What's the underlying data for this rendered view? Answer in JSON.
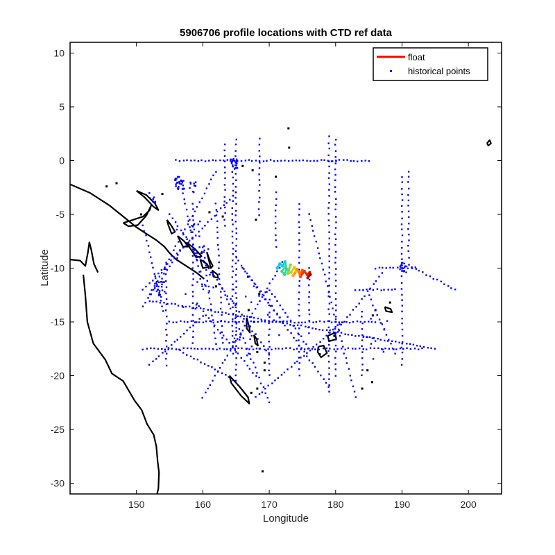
{
  "chart_data": {
    "type": "scatter",
    "title": "5906706 profile locations with CTD ref data",
    "xlabel": "Longitude",
    "ylabel": "Latitude",
    "xlim": [
      140,
      205
    ],
    "ylim": [
      -31,
      11
    ],
    "xticks": [
      150,
      160,
      170,
      180,
      190,
      200
    ],
    "yticks": [
      -30,
      -25,
      -20,
      -15,
      -10,
      -5,
      0,
      5,
      10
    ],
    "grid": false,
    "legend": {
      "placement": "top-right",
      "entries": [
        {
          "label": "float",
          "marker": "line",
          "color": "#ff0000"
        },
        {
          "label": "historical points",
          "marker": "dot",
          "color": "#0000ff"
        }
      ]
    },
    "colors": {
      "float": "#ff0000",
      "historical": "#0000ff",
      "coastline": "#000000"
    },
    "series": [
      {
        "name": "float",
        "kind": "line",
        "color_scale": "jet",
        "x": [
          171.2,
          171.6,
          172.0,
          172.4,
          172.6,
          172.3,
          171.9,
          172.4,
          172.9,
          173.2,
          172.8,
          173.3,
          173.8,
          174.1,
          173.6,
          174.2,
          174.6,
          175.0,
          174.7,
          175.3,
          175.7,
          176.1,
          175.8,
          176.2
        ],
        "y": [
          -10.0,
          -9.6,
          -9.8,
          -9.4,
          -10.1,
          -10.6,
          -10.3,
          -9.9,
          -10.2,
          -9.7,
          -10.5,
          -10.4,
          -9.9,
          -10.3,
          -10.7,
          -10.1,
          -10.5,
          -10.2,
          -10.8,
          -10.3,
          -10.6,
          -10.4,
          -10.9,
          -10.6
        ]
      },
      {
        "name": "historical points",
        "kind": "tracks",
        "tracks": [
          {
            "from": [
              156,
              0
            ],
            "to": [
              180,
              0
            ]
          },
          {
            "from": [
              179.5,
              0
            ],
            "to": [
              185,
              0
            ]
          },
          {
            "from": [
              165,
              2
            ],
            "to": [
              165,
              -20
            ]
          },
          {
            "from": [
              164.5,
              0
            ],
            "to": [
              164.5,
              -18
            ]
          },
          {
            "from": [
              163.3,
              1.5
            ],
            "to": [
              163.3,
              -6
            ]
          },
          {
            "from": [
              168.5,
              2
            ],
            "to": [
              168.5,
              -5
            ]
          },
          {
            "from": [
              179,
              2.2
            ],
            "to": [
              179,
              -21.5
            ]
          },
          {
            "from": [
              180,
              2
            ],
            "to": [
              180,
              -20
            ]
          },
          {
            "from": [
              190,
              -1.5
            ],
            "to": [
              190,
              -19
            ]
          },
          {
            "from": [
              174.5,
              -4
            ],
            "to": [
              174.5,
              -20
            ]
          },
          {
            "from": [
              154.5,
              -9.5
            ],
            "to": [
              154.5,
              -19
            ]
          },
          {
            "from": [
              158.5,
              -4
            ],
            "to": [
              158.5,
              -17
            ]
          },
          {
            "from": [
              152,
              -13
            ],
            "to": [
              195,
              -17.5
            ]
          },
          {
            "from": [
              151,
              -17.5
            ],
            "to": [
              193,
              -17.5
            ]
          },
          {
            "from": [
              155,
              -15
            ],
            "to": [
              186,
              -15
            ]
          },
          {
            "from": [
              151,
              -12
            ],
            "to": [
              165,
              -3
            ]
          },
          {
            "from": [
              152,
              -12.5
            ],
            "to": [
              162,
              -1
            ]
          },
          {
            "from": [
              154,
              -14
            ],
            "to": [
              151,
              -6
            ]
          },
          {
            "from": [
              165,
              -9
            ],
            "to": [
              179,
              -21
            ]
          },
          {
            "from": [
              163,
              -12
            ],
            "to": [
              170,
              -22.5
            ]
          },
          {
            "from": [
              172,
              -9.5
            ],
            "to": [
              160,
              -22
            ]
          },
          {
            "from": [
              181,
              -15
            ],
            "to": [
              168,
              -22
            ]
          },
          {
            "from": [
              186,
              -10
            ],
            "to": [
              192,
              -10
            ]
          },
          {
            "from": [
              191,
              -9.7
            ],
            "to": [
              198,
              -12
            ]
          },
          {
            "from": [
              180,
              -16
            ],
            "to": [
              187,
              -10.5
            ]
          },
          {
            "from": [
              176,
              -5
            ],
            "to": [
              183,
              -22
            ]
          },
          {
            "from": [
              155,
              -5
            ],
            "to": [
              170,
              -18
            ]
          },
          {
            "from": [
              160,
              -14
            ],
            "to": [
              168,
              -20
            ]
          },
          {
            "from": [
              152,
              -19
            ],
            "to": [
              160,
              -14.5
            ]
          },
          {
            "from": [
              156,
              -17.5
            ],
            "to": [
              165,
              -20.5
            ]
          },
          {
            "from": [
              170,
              -12
            ],
            "to": [
              176,
              -17.5
            ]
          },
          {
            "from": [
              166,
              -10
            ],
            "to": [
              172,
              -15
            ]
          },
          {
            "from": [
              157,
              -3
            ],
            "to": [
              160,
              -12
            ]
          },
          {
            "from": [
              160,
              -8
            ],
            "to": [
              162,
              -17
            ]
          },
          {
            "from": [
              162,
              -4
            ],
            "to": [
              163,
              -17
            ]
          },
          {
            "from": [
              183,
              -12
            ],
            "to": [
              189,
              -12
            ]
          },
          {
            "from": [
              176,
              -10
            ],
            "to": [
              176,
              -16
            ]
          },
          {
            "from": [
              171,
              -3
            ],
            "to": [
              171,
              -8
            ]
          },
          {
            "from": [
              170,
              -13
            ],
            "to": [
              170,
              -20
            ]
          },
          {
            "from": [
              184,
              -14
            ],
            "to": [
              184,
              -20
            ]
          },
          {
            "from": [
              151,
              -13.5
            ],
            "to": [
              157,
              -8
            ]
          },
          {
            "from": [
              185,
              -12.5
            ],
            "to": [
              189,
              -18
            ]
          },
          {
            "from": [
              191,
              -1
            ],
            "to": [
              191,
              -9
            ]
          }
        ],
        "clusters": [
          {
            "center": [
              156.5,
              -2.2
            ],
            "count": 30,
            "spread": 0.7
          },
          {
            "center": [
              158.5,
              -2.5
            ],
            "count": 10,
            "spread": 0.5
          },
          {
            "center": [
              153.5,
              -12.0
            ],
            "count": 20,
            "spread": 0.8
          },
          {
            "center": [
              164.7,
              -0.3
            ],
            "count": 25,
            "spread": 0.5
          },
          {
            "center": [
              190.2,
              -9.9
            ],
            "count": 16,
            "spread": 0.5
          },
          {
            "center": [
              152.5,
              -3.5
            ],
            "count": 8,
            "spread": 0.6
          },
          {
            "center": [
              160.0,
              -11.0
            ],
            "count": 20,
            "spread": 3.0
          },
          {
            "center": [
              168.0,
              -15.0
            ],
            "count": 25,
            "spread": 3.5
          },
          {
            "center": [
              158.0,
              -7.0
            ],
            "count": 16,
            "spread": 2.5
          },
          {
            "center": [
              186.0,
              -16.5
            ],
            "count": 12,
            "spread": 2.0
          }
        ]
      }
    ],
    "coastlines": [
      [
        [
          140,
          -2.2
        ],
        [
          143,
          -3.0
        ],
        [
          146,
          -4.2
        ],
        [
          148,
          -5.2
        ],
        [
          150,
          -6.2
        ],
        [
          151.5,
          -6.8
        ],
        [
          153,
          -7.4
        ],
        [
          154.2,
          -8.0
        ],
        [
          155,
          -8.6
        ],
        [
          156,
          -9.2
        ],
        [
          157,
          -9.6
        ],
        [
          158,
          -10.0
        ],
        [
          159,
          -10.4
        ],
        [
          160.2,
          -11.0
        ]
      ],
      [
        [
          140,
          -9.2
        ],
        [
          141.5,
          -9.3
        ],
        [
          142.3,
          -9.8
        ],
        [
          142.7,
          -8.5
        ],
        [
          142.9,
          -7.6
        ],
        [
          143.2,
          -8.3
        ],
        [
          143.6,
          -9.6
        ],
        [
          144.2,
          -10.4
        ]
      ],
      [
        [
          142.0,
          -10.6
        ],
        [
          142.3,
          -12.5
        ],
        [
          142.6,
          -15.0
        ],
        [
          143.5,
          -17.0
        ],
        [
          145.3,
          -18.5
        ],
        [
          146.3,
          -19.8
        ],
        [
          148.0,
          -20.5
        ],
        [
          149.7,
          -22.3
        ],
        [
          150.8,
          -23.2
        ],
        [
          151.6,
          -24.5
        ],
        [
          152.6,
          -25.5
        ],
        [
          153.0,
          -26.6
        ],
        [
          153.2,
          -28.0
        ],
        [
          153.4,
          -29.0
        ],
        [
          153.3,
          -30.5
        ],
        [
          153.1,
          -31.0
        ]
      ],
      [
        [
          148.0,
          -5.8
        ],
        [
          149.5,
          -5.5
        ],
        [
          151.0,
          -5.2
        ],
        [
          152.0,
          -4.6
        ],
        [
          152.2,
          -4.2
        ],
        [
          151.5,
          -5.1
        ],
        [
          150.2,
          -6.0
        ],
        [
          148.8,
          -6.1
        ],
        [
          148.0,
          -5.8
        ]
      ],
      [
        [
          150.0,
          -2.8
        ],
        [
          151.5,
          -3.2
        ],
        [
          152.8,
          -4.0
        ],
        [
          153.3,
          -4.6
        ],
        [
          152.6,
          -4.3
        ],
        [
          151.2,
          -3.4
        ],
        [
          150.0,
          -2.8
        ]
      ],
      [
        [
          154.6,
          -5.5
        ],
        [
          155.2,
          -6.0
        ],
        [
          155.8,
          -6.6
        ],
        [
          155.3,
          -6.8
        ],
        [
          154.8,
          -6.0
        ],
        [
          154.6,
          -5.5
        ]
      ],
      [
        [
          156.2,
          -7.0
        ],
        [
          157.2,
          -7.5
        ],
        [
          157.8,
          -8.0
        ],
        [
          157.0,
          -8.0
        ],
        [
          156.2,
          -7.0
        ]
      ],
      [
        [
          157.5,
          -7.6
        ],
        [
          158.8,
          -8.2
        ],
        [
          159.8,
          -8.9
        ],
        [
          159.0,
          -9.0
        ],
        [
          157.5,
          -7.6
        ]
      ],
      [
        [
          159.6,
          -9.2
        ],
        [
          160.6,
          -9.6
        ],
        [
          160.9,
          -9.9
        ],
        [
          160.0,
          -10.0
        ],
        [
          159.6,
          -9.2
        ]
      ],
      [
        [
          160.6,
          -8.5
        ],
        [
          161.0,
          -9.2
        ],
        [
          161.5,
          -9.8
        ],
        [
          161.2,
          -10.0
        ],
        [
          160.6,
          -8.5
        ]
      ],
      [
        [
          161.4,
          -10.2
        ],
        [
          162.2,
          -10.6
        ],
        [
          162.3,
          -10.9
        ],
        [
          161.6,
          -10.8
        ],
        [
          161.4,
          -10.2
        ]
      ],
      [
        [
          166.6,
          -14.6
        ],
        [
          167.0,
          -15.5
        ],
        [
          167.1,
          -16.0
        ],
        [
          166.6,
          -15.6
        ],
        [
          166.6,
          -14.6
        ]
      ],
      [
        [
          167.7,
          -16.2
        ],
        [
          168.1,
          -16.6
        ],
        [
          168.3,
          -17.2
        ],
        [
          167.9,
          -17.0
        ],
        [
          167.7,
          -16.2
        ]
      ],
      [
        [
          164.0,
          -20.0
        ],
        [
          165.5,
          -21.0
        ],
        [
          166.8,
          -22.0
        ],
        [
          167.0,
          -22.6
        ],
        [
          165.8,
          -21.9
        ],
        [
          164.3,
          -20.7
        ],
        [
          164.0,
          -20.0
        ]
      ],
      [
        [
          177.4,
          -17.3
        ],
        [
          178.2,
          -17.2
        ],
        [
          178.7,
          -17.9
        ],
        [
          177.8,
          -18.3
        ],
        [
          177.3,
          -17.8
        ],
        [
          177.4,
          -17.3
        ]
      ],
      [
        [
          178.8,
          -16.3
        ],
        [
          179.9,
          -16.0
        ],
        [
          180.1,
          -16.6
        ],
        [
          179.0,
          -16.8
        ],
        [
          178.8,
          -16.3
        ]
      ],
      [
        [
          187.4,
          -13.6
        ],
        [
          188.3,
          -13.8
        ],
        [
          188.5,
          -14.1
        ],
        [
          187.6,
          -14.0
        ],
        [
          187.4,
          -13.6
        ]
      ],
      [
        [
          202.8,
          1.6
        ],
        [
          203.2,
          1.9
        ],
        [
          203.4,
          1.6
        ],
        [
          203.0,
          1.4
        ],
        [
          202.8,
          1.6
        ]
      ]
    ],
    "islets": [
      [
        166.0,
        -0.5
      ],
      [
        173.0,
        1.2
      ],
      [
        172.9,
        3.0
      ],
      [
        167.5,
        -0.9
      ],
      [
        160.2,
        -9.4
      ],
      [
        166.8,
        -10.8
      ],
      [
        168.5,
        -12.4
      ],
      [
        166.9,
        -13.9
      ],
      [
        167.7,
        -15.0
      ],
      [
        168.2,
        -17.8
      ],
      [
        169.3,
        -18.8
      ],
      [
        169.3,
        -19.5
      ],
      [
        168.2,
        -21.2
      ],
      [
        167.3,
        -21.6
      ],
      [
        169.0,
        -28.9
      ],
      [
        184.0,
        -21.2
      ],
      [
        184.8,
        -19.5
      ],
      [
        185.5,
        -20.6
      ],
      [
        186.0,
        -13.9
      ],
      [
        185.6,
        -14.4
      ],
      [
        188.2,
        -13.2
      ],
      [
        179.8,
        -16.3
      ],
      [
        177.6,
        -18.0
      ],
      [
        161.0,
        -4.8
      ],
      [
        163.0,
        -5.2
      ],
      [
        162.0,
        -11.7
      ],
      [
        168.0,
        -5.5
      ],
      [
        171.0,
        -1.5
      ],
      [
        145.5,
        -2.4
      ],
      [
        147.0,
        -2.1
      ],
      [
        153.9,
        -3.1
      ],
      [
        150.7,
        -5.0
      ],
      [
        159.8,
        -8.6
      ]
    ]
  }
}
